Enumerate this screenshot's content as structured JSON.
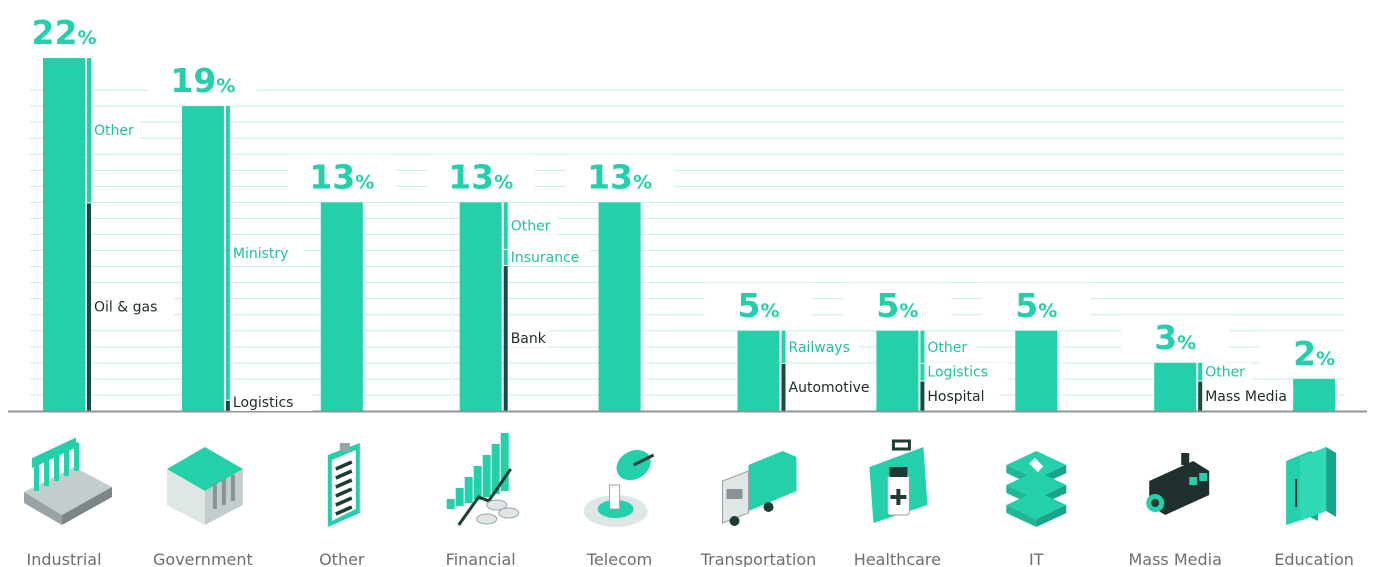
{
  "colors": {
    "primary": "#23d0aa",
    "dark": "#1b4a40",
    "grid": "#c9ecdf",
    "axis": "#8e9497",
    "label_teal": "#23bfa0",
    "label_dark": "#1e2b2a",
    "category_text": "#6b6f72"
  },
  "percent_sign": "%",
  "chart_data": {
    "type": "bar",
    "title": "",
    "xlabel": "",
    "ylabel": "",
    "ylim": [
      0,
      24
    ],
    "grid": true,
    "categories": [
      "Industrial",
      "Government",
      "Other",
      "Financial",
      "Telecom",
      "Transportation",
      "Healthcare",
      "IT",
      "Mass Media",
      "Education"
    ],
    "values": [
      22,
      19,
      13,
      13,
      13,
      5,
      5,
      5,
      3,
      2
    ],
    "value_labels": [
      "22",
      "19",
      "13",
      "13",
      "13",
      "5",
      "5",
      "5",
      "3",
      "2"
    ],
    "icons": [
      "factory-icon",
      "government-building-icon",
      "clipboard-icon",
      "financial-growth-icon",
      "satellite-dish-icon",
      "truck-icon",
      "first-aid-kit-icon",
      "server-icon",
      "video-camera-icon",
      "books-icon"
    ],
    "breakdowns": [
      {
        "category": "Industrial",
        "segments": [
          {
            "label": "Other",
            "value": 9,
            "tone": "teal"
          },
          {
            "label": "Oil & gas",
            "value": 13,
            "tone": "dark"
          }
        ]
      },
      {
        "category": "Government",
        "segments": [
          {
            "label": "Ministry",
            "value": 18.3,
            "tone": "teal"
          },
          {
            "label": "Logistics",
            "value": 0.7,
            "tone": "dark"
          }
        ]
      },
      {
        "category": "Financial",
        "segments": [
          {
            "label": "Other",
            "value": 2.9,
            "tone": "teal"
          },
          {
            "label": "Insurance",
            "value": 1.0,
            "tone": "teal"
          },
          {
            "label": "Bank",
            "value": 9.1,
            "tone": "dark"
          }
        ]
      },
      {
        "category": "Transportation",
        "segments": [
          {
            "label": "Railways",
            "value": 2.0,
            "tone": "teal"
          },
          {
            "label": "Automotive",
            "value": 3.0,
            "tone": "dark"
          }
        ]
      },
      {
        "category": "Healthcare",
        "segments": [
          {
            "label": "Other",
            "value": 2.0,
            "tone": "teal"
          },
          {
            "label": "Logistics",
            "value": 1.1,
            "tone": "teal"
          },
          {
            "label": "Hospital",
            "value": 1.9,
            "tone": "dark"
          }
        ]
      },
      {
        "category": "Mass Media",
        "segments": [
          {
            "label": "Other",
            "value": 1.1,
            "tone": "teal"
          },
          {
            "label": "Mass Media",
            "value": 1.9,
            "tone": "dark"
          }
        ]
      }
    ]
  }
}
